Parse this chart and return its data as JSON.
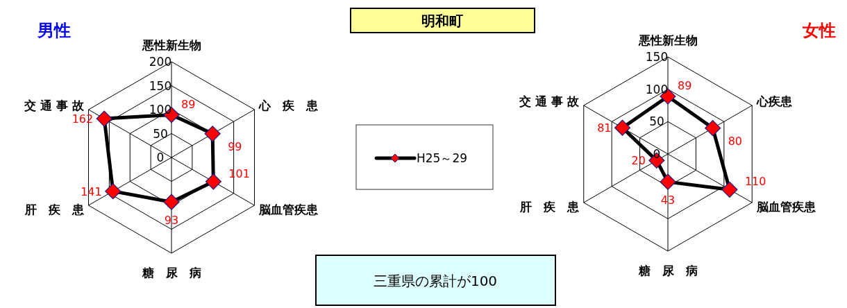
{
  "chart_data": [
    {
      "type": "radar",
      "title": "男性",
      "annotations": [
        "明和町",
        "三重県の累計が100"
      ],
      "categories": [
        "悪性新生物",
        "心　疾　患",
        "脳血管疾患",
        "糖　尿　病",
        "肝　疾　患",
        "交 通 事 故"
      ],
      "series": [
        {
          "name": "H25～29",
          "color": "#000000",
          "values": [
            89,
            99,
            101,
            93,
            141,
            162
          ]
        }
      ],
      "ylim": [
        0,
        200
      ],
      "yticks": [
        0,
        50,
        100,
        150,
        200
      ],
      "data_labels": true,
      "marker": "diamond",
      "legend": "right",
      "grid": true
    },
    {
      "type": "radar",
      "title": "女性",
      "categories": [
        "悪性新生物",
        "心疾患",
        "脳血管疾患",
        "糖　尿　病",
        "肝　疾　患",
        "交 通 事 故"
      ],
      "series": [
        {
          "color": "#000000",
          "values": [
            89,
            80,
            110,
            43,
            20,
            81
          ]
        }
      ],
      "ylim": [
        0,
        150
      ],
      "yticks": [
        0,
        50,
        100,
        150
      ],
      "data_labels": true,
      "marker": "diamond",
      "legend": false,
      "grid": true
    }
  ]
}
